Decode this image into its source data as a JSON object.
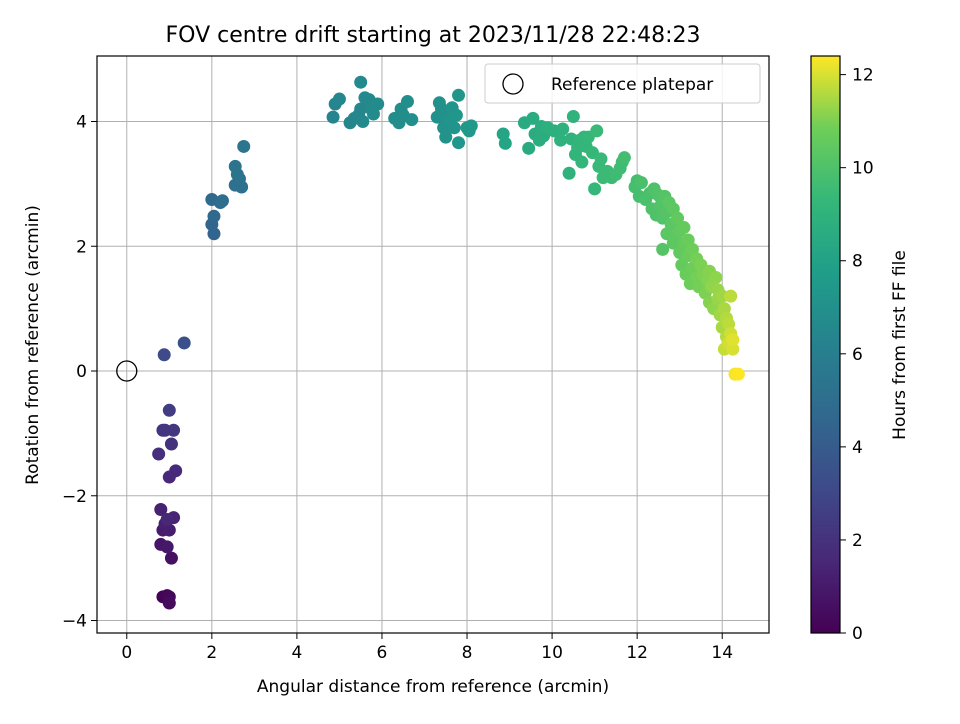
{
  "chart_data": {
    "type": "scatter",
    "title": "FOV centre drift starting at 2023/11/28 22:48:23",
    "xlabel": "Angular distance from reference (arcmin)",
    "ylabel": "Rotation from reference (arcmin)",
    "xlim": [
      -0.7,
      15.1
    ],
    "ylim": [
      -4.2,
      5.05
    ],
    "xticks": [
      0,
      2,
      4,
      6,
      8,
      10,
      12,
      14
    ],
    "xtick_labels": [
      "0",
      "2",
      "4",
      "6",
      "8",
      "10",
      "12",
      "14"
    ],
    "yticks": [
      -4,
      -2,
      0,
      2,
      4
    ],
    "ytick_labels": [
      "−4",
      "−2",
      "0",
      "2",
      "4"
    ],
    "grid": true,
    "legend": {
      "position": "top-right",
      "entries": [
        "Reference platepar"
      ]
    },
    "reference_point": {
      "x": 0,
      "y": 0
    },
    "colorbar": {
      "label": "Hours from first FF file",
      "colormap": "viridis",
      "range": [
        0,
        12.4
      ],
      "ticks": [
        0,
        2,
        4,
        6,
        8,
        10,
        12
      ],
      "tick_labels": [
        "0",
        "2",
        "4",
        "6",
        "8",
        "10",
        "12"
      ]
    },
    "points": [
      {
        "x": 0.85,
        "y": -3.62,
        "c": 0.1
      },
      {
        "x": 0.95,
        "y": -3.6,
        "c": 0.2
      },
      {
        "x": 1.0,
        "y": -3.62,
        "c": 0.3
      },
      {
        "x": 1.0,
        "y": -3.72,
        "c": 0.4
      },
      {
        "x": 1.05,
        "y": -3.0,
        "c": 0.6
      },
      {
        "x": 0.8,
        "y": -2.78,
        "c": 0.8
      },
      {
        "x": 0.95,
        "y": -2.82,
        "c": 0.9
      },
      {
        "x": 0.85,
        "y": -2.55,
        "c": 1.0
      },
      {
        "x": 1.0,
        "y": -2.55,
        "c": 1.1
      },
      {
        "x": 0.9,
        "y": -2.45,
        "c": 1.2
      },
      {
        "x": 0.8,
        "y": -2.22,
        "c": 1.3
      },
      {
        "x": 1.1,
        "y": -2.35,
        "c": 1.4
      },
      {
        "x": 0.95,
        "y": -2.38,
        "c": 1.5
      },
      {
        "x": 1.0,
        "y": -1.7,
        "c": 1.6
      },
      {
        "x": 1.15,
        "y": -1.6,
        "c": 1.7
      },
      {
        "x": 0.75,
        "y": -1.33,
        "c": 1.9
      },
      {
        "x": 1.05,
        "y": -1.17,
        "c": 2.0
      },
      {
        "x": 0.85,
        "y": -0.95,
        "c": 2.1
      },
      {
        "x": 0.9,
        "y": -0.95,
        "c": 2.2
      },
      {
        "x": 1.1,
        "y": -0.95,
        "c": 2.3
      },
      {
        "x": 1.0,
        "y": -0.63,
        "c": 2.5
      },
      {
        "x": 0.88,
        "y": 0.26,
        "c": 3.1
      },
      {
        "x": 1.35,
        "y": 0.45,
        "c": 3.4
      },
      {
        "x": 2.05,
        "y": 2.2,
        "c": 4.5
      },
      {
        "x": 2.0,
        "y": 2.35,
        "c": 4.6
      },
      {
        "x": 2.05,
        "y": 2.48,
        "c": 4.7
      },
      {
        "x": 2.0,
        "y": 2.75,
        "c": 4.8
      },
      {
        "x": 2.2,
        "y": 2.7,
        "c": 4.9
      },
      {
        "x": 2.25,
        "y": 2.73,
        "c": 5.0
      },
      {
        "x": 2.55,
        "y": 2.98,
        "c": 5.1
      },
      {
        "x": 2.7,
        "y": 2.95,
        "c": 5.2
      },
      {
        "x": 2.65,
        "y": 3.08,
        "c": 5.2
      },
      {
        "x": 2.6,
        "y": 3.15,
        "c": 5.3
      },
      {
        "x": 2.55,
        "y": 3.28,
        "c": 5.3
      },
      {
        "x": 2.75,
        "y": 3.6,
        "c": 5.4
      },
      {
        "x": 4.85,
        "y": 4.07,
        "c": 6.3
      },
      {
        "x": 4.9,
        "y": 4.28,
        "c": 6.3
      },
      {
        "x": 5.0,
        "y": 4.36,
        "c": 6.4
      },
      {
        "x": 5.25,
        "y": 3.98,
        "c": 6.4
      },
      {
        "x": 5.35,
        "y": 4.05,
        "c": 6.5
      },
      {
        "x": 5.45,
        "y": 4.1,
        "c": 6.5
      },
      {
        "x": 5.5,
        "y": 4.2,
        "c": 6.5
      },
      {
        "x": 5.5,
        "y": 4.63,
        "c": 6.6
      },
      {
        "x": 5.6,
        "y": 4.38,
        "c": 6.6
      },
      {
        "x": 5.7,
        "y": 4.35,
        "c": 6.6
      },
      {
        "x": 5.55,
        "y": 4.0,
        "c": 6.6
      },
      {
        "x": 5.75,
        "y": 4.2,
        "c": 6.7
      },
      {
        "x": 5.8,
        "y": 4.12,
        "c": 6.7
      },
      {
        "x": 5.9,
        "y": 4.28,
        "c": 6.7
      },
      {
        "x": 6.3,
        "y": 4.05,
        "c": 6.8
      },
      {
        "x": 6.4,
        "y": 3.98,
        "c": 6.8
      },
      {
        "x": 6.5,
        "y": 4.1,
        "c": 6.8
      },
      {
        "x": 6.45,
        "y": 4.2,
        "c": 6.8
      },
      {
        "x": 6.6,
        "y": 4.32,
        "c": 6.9
      },
      {
        "x": 6.7,
        "y": 4.03,
        "c": 6.9
      },
      {
        "x": 7.3,
        "y": 4.07,
        "c": 7.0
      },
      {
        "x": 7.35,
        "y": 4.3,
        "c": 7.0
      },
      {
        "x": 7.4,
        "y": 4.2,
        "c": 7.0
      },
      {
        "x": 7.45,
        "y": 3.9,
        "c": 7.1
      },
      {
        "x": 7.5,
        "y": 3.75,
        "c": 7.1
      },
      {
        "x": 7.55,
        "y": 4.05,
        "c": 7.1
      },
      {
        "x": 7.6,
        "y": 4.0,
        "c": 7.2
      },
      {
        "x": 7.65,
        "y": 4.22,
        "c": 7.2
      },
      {
        "x": 7.7,
        "y": 3.9,
        "c": 7.2
      },
      {
        "x": 7.75,
        "y": 4.1,
        "c": 7.3
      },
      {
        "x": 7.8,
        "y": 4.42,
        "c": 7.3
      },
      {
        "x": 7.8,
        "y": 3.66,
        "c": 7.3
      },
      {
        "x": 8.0,
        "y": 3.9,
        "c": 7.4
      },
      {
        "x": 8.05,
        "y": 3.85,
        "c": 7.4
      },
      {
        "x": 8.1,
        "y": 3.93,
        "c": 7.5
      },
      {
        "x": 8.85,
        "y": 3.8,
        "c": 8.2
      },
      {
        "x": 8.9,
        "y": 3.65,
        "c": 8.2
      },
      {
        "x": 9.35,
        "y": 3.98,
        "c": 8.5
      },
      {
        "x": 9.45,
        "y": 3.57,
        "c": 8.5
      },
      {
        "x": 9.55,
        "y": 4.05,
        "c": 8.6
      },
      {
        "x": 9.6,
        "y": 3.8,
        "c": 8.6
      },
      {
        "x": 9.7,
        "y": 3.7,
        "c": 8.7
      },
      {
        "x": 9.75,
        "y": 3.92,
        "c": 8.7
      },
      {
        "x": 9.8,
        "y": 3.77,
        "c": 8.7
      },
      {
        "x": 9.9,
        "y": 3.9,
        "c": 8.8
      },
      {
        "x": 10.05,
        "y": 3.85,
        "c": 8.8
      },
      {
        "x": 10.2,
        "y": 3.7,
        "c": 8.9
      },
      {
        "x": 10.25,
        "y": 3.88,
        "c": 8.9
      },
      {
        "x": 10.4,
        "y": 3.17,
        "c": 9.0
      },
      {
        "x": 10.45,
        "y": 3.72,
        "c": 9.0
      },
      {
        "x": 10.5,
        "y": 4.08,
        "c": 9.0
      },
      {
        "x": 10.55,
        "y": 3.47,
        "c": 9.1
      },
      {
        "x": 10.6,
        "y": 3.58,
        "c": 9.1
      },
      {
        "x": 10.65,
        "y": 3.7,
        "c": 9.1
      },
      {
        "x": 10.7,
        "y": 3.35,
        "c": 9.2
      },
      {
        "x": 10.75,
        "y": 3.75,
        "c": 9.2
      },
      {
        "x": 10.8,
        "y": 3.6,
        "c": 9.2
      },
      {
        "x": 10.85,
        "y": 3.75,
        "c": 9.3
      },
      {
        "x": 10.95,
        "y": 3.5,
        "c": 9.3
      },
      {
        "x": 11.0,
        "y": 2.92,
        "c": 9.3
      },
      {
        "x": 11.05,
        "y": 3.85,
        "c": 9.4
      },
      {
        "x": 11.1,
        "y": 3.28,
        "c": 9.4
      },
      {
        "x": 11.15,
        "y": 3.4,
        "c": 9.4
      },
      {
        "x": 11.2,
        "y": 3.1,
        "c": 9.5
      },
      {
        "x": 11.3,
        "y": 3.2,
        "c": 9.5
      },
      {
        "x": 11.4,
        "y": 3.1,
        "c": 9.5
      },
      {
        "x": 11.5,
        "y": 3.15,
        "c": 9.6
      },
      {
        "x": 11.6,
        "y": 3.25,
        "c": 9.6
      },
      {
        "x": 11.65,
        "y": 3.35,
        "c": 9.6
      },
      {
        "x": 11.7,
        "y": 3.42,
        "c": 9.7
      },
      {
        "x": 11.95,
        "y": 2.95,
        "c": 9.8
      },
      {
        "x": 12.0,
        "y": 3.05,
        "c": 9.8
      },
      {
        "x": 12.05,
        "y": 2.8,
        "c": 9.8
      },
      {
        "x": 12.1,
        "y": 3.02,
        "c": 9.9
      },
      {
        "x": 12.2,
        "y": 2.75,
        "c": 9.9
      },
      {
        "x": 12.3,
        "y": 2.85,
        "c": 9.9
      },
      {
        "x": 12.35,
        "y": 2.6,
        "c": 10.0
      },
      {
        "x": 12.4,
        "y": 2.92,
        "c": 10.0
      },
      {
        "x": 12.45,
        "y": 2.5,
        "c": 10.0
      },
      {
        "x": 12.5,
        "y": 2.82,
        "c": 10.1
      },
      {
        "x": 12.55,
        "y": 2.65,
        "c": 10.1
      },
      {
        "x": 12.6,
        "y": 2.45,
        "c": 10.1
      },
      {
        "x": 12.6,
        "y": 1.95,
        "c": 10.2
      },
      {
        "x": 12.65,
        "y": 2.8,
        "c": 10.2
      },
      {
        "x": 12.7,
        "y": 2.55,
        "c": 10.2
      },
      {
        "x": 12.7,
        "y": 2.2,
        "c": 10.3
      },
      {
        "x": 12.75,
        "y": 2.7,
        "c": 10.3
      },
      {
        "x": 12.8,
        "y": 2.35,
        "c": 10.3
      },
      {
        "x": 12.85,
        "y": 2.05,
        "c": 10.4
      },
      {
        "x": 12.85,
        "y": 2.6,
        "c": 10.4
      },
      {
        "x": 12.9,
        "y": 2.15,
        "c": 10.4
      },
      {
        "x": 12.95,
        "y": 2.45,
        "c": 10.5
      },
      {
        "x": 13.0,
        "y": 1.9,
        "c": 10.5
      },
      {
        "x": 13.0,
        "y": 2.25,
        "c": 10.5
      },
      {
        "x": 13.05,
        "y": 1.7,
        "c": 10.6
      },
      {
        "x": 13.1,
        "y": 2.05,
        "c": 10.6
      },
      {
        "x": 13.1,
        "y": 2.3,
        "c": 10.6
      },
      {
        "x": 13.15,
        "y": 1.55,
        "c": 10.7
      },
      {
        "x": 13.2,
        "y": 1.85,
        "c": 10.7
      },
      {
        "x": 13.2,
        "y": 2.1,
        "c": 10.7
      },
      {
        "x": 13.25,
        "y": 1.4,
        "c": 10.8
      },
      {
        "x": 13.3,
        "y": 1.95,
        "c": 10.8
      },
      {
        "x": 13.3,
        "y": 1.65,
        "c": 10.8
      },
      {
        "x": 13.4,
        "y": 1.8,
        "c": 10.9
      },
      {
        "x": 13.4,
        "y": 1.5,
        "c": 10.9
      },
      {
        "x": 13.45,
        "y": 1.35,
        "c": 10.9
      },
      {
        "x": 13.5,
        "y": 1.7,
        "c": 11.0
      },
      {
        "x": 13.55,
        "y": 1.55,
        "c": 11.0
      },
      {
        "x": 13.6,
        "y": 1.25,
        "c": 11.0
      },
      {
        "x": 13.65,
        "y": 1.45,
        "c": 11.1
      },
      {
        "x": 13.7,
        "y": 1.6,
        "c": 11.1
      },
      {
        "x": 13.7,
        "y": 1.1,
        "c": 11.1
      },
      {
        "x": 13.75,
        "y": 1.35,
        "c": 11.2
      },
      {
        "x": 13.8,
        "y": 1.0,
        "c": 11.2
      },
      {
        "x": 13.85,
        "y": 1.5,
        "c": 11.2
      },
      {
        "x": 13.9,
        "y": 1.3,
        "c": 11.3
      },
      {
        "x": 13.9,
        "y": 1.15,
        "c": 11.3
      },
      {
        "x": 13.95,
        "y": 0.9,
        "c": 11.4
      },
      {
        "x": 14.0,
        "y": 1.2,
        "c": 11.4
      },
      {
        "x": 14.0,
        "y": 0.7,
        "c": 11.5
      },
      {
        "x": 14.05,
        "y": 1.0,
        "c": 11.5
      },
      {
        "x": 14.1,
        "y": 0.85,
        "c": 11.6
      },
      {
        "x": 14.1,
        "y": 0.55,
        "c": 11.6
      },
      {
        "x": 14.15,
        "y": 0.75,
        "c": 11.7
      },
      {
        "x": 14.2,
        "y": 1.2,
        "c": 11.7
      },
      {
        "x": 14.05,
        "y": 0.35,
        "c": 11.8
      },
      {
        "x": 14.15,
        "y": 0.45,
        "c": 11.9
      },
      {
        "x": 14.2,
        "y": 0.6,
        "c": 11.9
      },
      {
        "x": 14.25,
        "y": 0.35,
        "c": 12.0
      },
      {
        "x": 14.25,
        "y": 0.5,
        "c": 12.1
      },
      {
        "x": 14.3,
        "y": -0.05,
        "c": 12.3
      },
      {
        "x": 14.38,
        "y": -0.05,
        "c": 12.4
      }
    ]
  }
}
